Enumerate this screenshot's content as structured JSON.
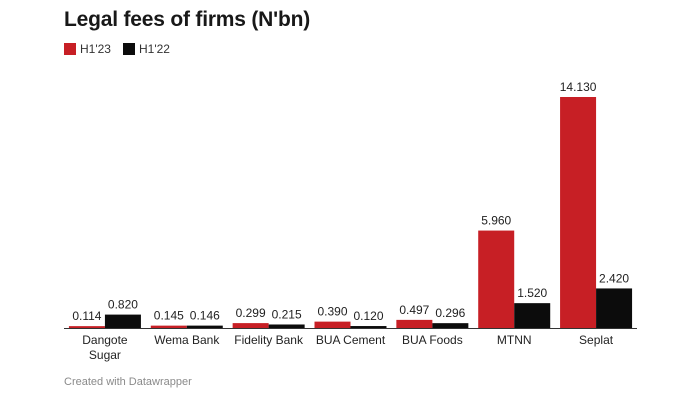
{
  "chart_data": {
    "type": "bar",
    "title": "Legal fees of firms (N'bn)",
    "categories": [
      [
        "Dangote",
        "Sugar"
      ],
      [
        "Wema Bank"
      ],
      [
        "Fidelity Bank"
      ],
      [
        "BUA Cement"
      ],
      [
        "BUA Foods"
      ],
      [
        "MTNN"
      ],
      [
        "Seplat"
      ]
    ],
    "series": [
      {
        "name": "H1'23",
        "color": "#c71f25",
        "values": [
          0.114,
          0.145,
          0.299,
          0.39,
          0.497,
          5.96,
          14.13
        ],
        "labels": [
          "0.114",
          "0.145",
          "0.299",
          "0.390",
          "0.497",
          "5.960",
          "14.130"
        ]
      },
      {
        "name": "H1'22",
        "color": "#0c0c0c",
        "values": [
          0.82,
          0.146,
          0.215,
          0.12,
          0.296,
          1.52,
          2.42
        ],
        "labels": [
          "0.820",
          "0.146",
          "0.215",
          "0.120",
          "0.296",
          "1.520",
          "2.420"
        ]
      }
    ],
    "ylim": [
      0,
      14.13
    ],
    "grid": false,
    "legend_position": "top-left"
  },
  "footer": "Created with Datawrapper"
}
